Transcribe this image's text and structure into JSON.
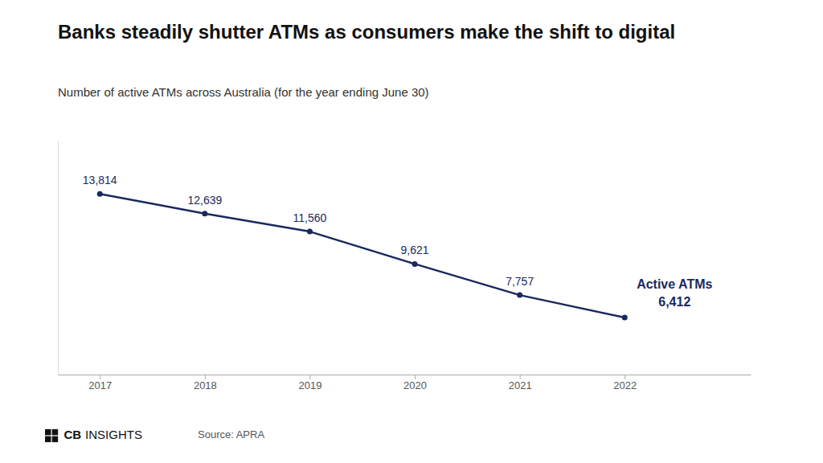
{
  "chart_data": {
    "type": "line",
    "title": "Banks steadily shutter ATMs as consumers make the shift to digital",
    "subtitle": "Number of active ATMs across Australia (for the year ending June 30)",
    "x": [
      2017,
      2018,
      2019,
      2020,
      2021,
      2022
    ],
    "values": [
      13814,
      12639,
      11560,
      9621,
      7757,
      6412
    ],
    "value_labels": [
      "13,814",
      "12,639",
      "11,560",
      "9,621",
      "7,757",
      "6,412"
    ],
    "data_labels": true,
    "color": "#1a2a5e",
    "marker": "circle",
    "xlim": [
      2016.6,
      2023.2
    ],
    "xticks": [
      2017,
      2018,
      2019,
      2020,
      2021,
      2022
    ],
    "ylim": [
      3000,
      17000
    ],
    "tick_labels": "x",
    "grid": false,
    "annotation": "Active ATMs",
    "logo": [
      "CB",
      "INSIGHTS"
    ],
    "source": "Source: APRA"
  }
}
